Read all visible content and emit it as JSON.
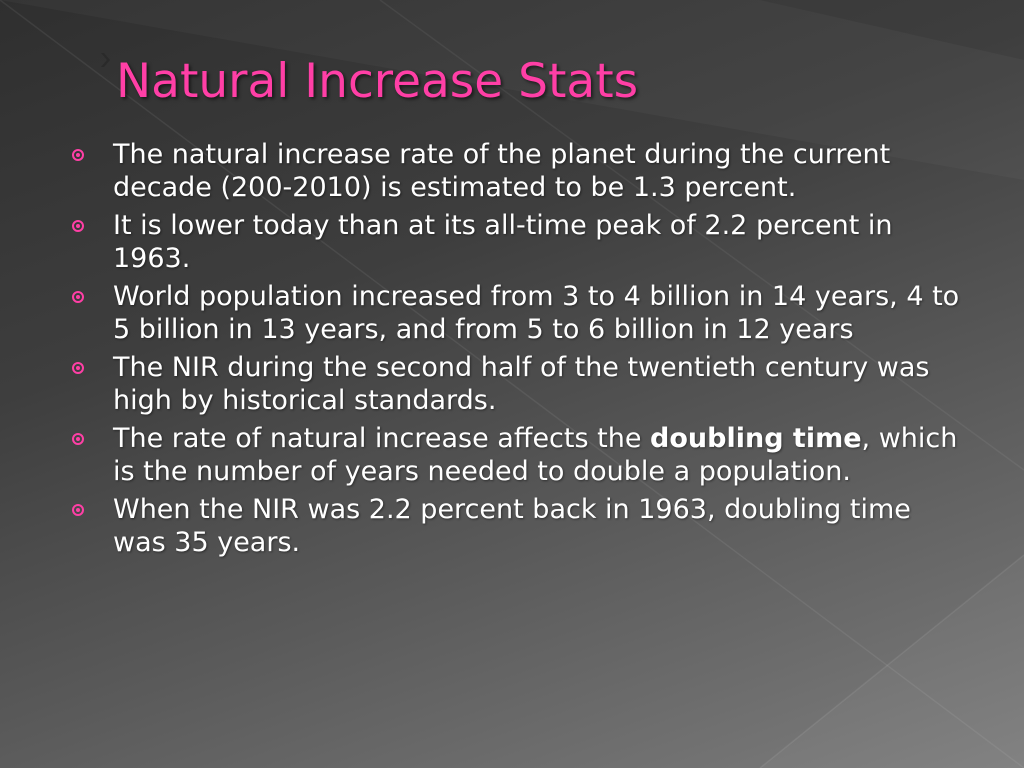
{
  "slide": {
    "title": "Natural Increase Stats",
    "accent_color": "#ff3fa6",
    "text_color": "#ffffff",
    "bullet_icon": "circled-dot-icon",
    "bullets": [
      {
        "text": "The natural increase rate of the planet during the current decade (200-2010) is estimated to be 1.3 percent."
      },
      {
        "text": "It is lower today than at its all-time peak of 2.2 percent in 1963."
      },
      {
        "text": "World population increased from 3 to 4 billion in 14 years, 4 to 5 billion in 13 years, and from 5 to 6 billion in 12 years"
      },
      {
        "text": "The NIR during the second half of the twentieth century was high by historical standards."
      },
      {
        "before": "The rate of natural increase affects the ",
        "bold": "doubling time",
        "after": ", which is the number of years needed to double a population."
      },
      {
        "text": "When the NIR was 2.2 percent back in 1963, doubling time was 35 years."
      }
    ]
  }
}
